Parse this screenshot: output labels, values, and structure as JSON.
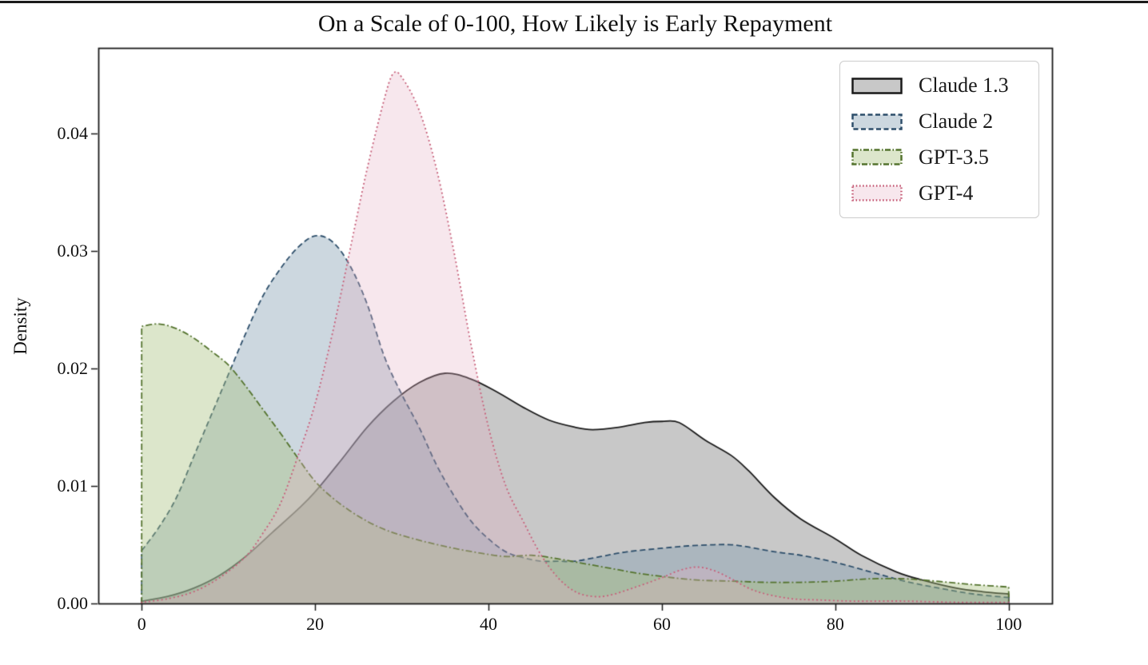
{
  "page": {
    "title": "On a Scale of 0-100, How Likely is Early Repayment"
  },
  "chart_data": {
    "type": "area",
    "subtype": "kde-density",
    "title": "On a Scale of 0-100, How Likely is Early Repayment",
    "xlabel": "",
    "ylabel": "Density",
    "xlim": [
      -5,
      105
    ],
    "ylim": [
      0,
      0.0473
    ],
    "grid": false,
    "legend_position": "upper right",
    "x_ticks": [
      0,
      20,
      40,
      60,
      80,
      100
    ],
    "x_tick_labels": [
      "0",
      "20",
      "40",
      "60",
      "80",
      "100"
    ],
    "y_ticks": [
      0,
      0.01,
      0.02,
      0.03,
      0.04
    ],
    "y_tick_labels": [
      "0.00",
      "0.01",
      "0.02",
      "0.03",
      "0.04"
    ],
    "frame_color": "#1a1a1a",
    "series": [
      {
        "name": "Claude 1.3",
        "line_style": "solid",
        "line_color": "#1a1a1a",
        "fill_color": "#767676",
        "fill_alpha": 0.4,
        "points": [
          [
            0,
            0.0002
          ],
          [
            3,
            0.0006
          ],
          [
            6,
            0.0013
          ],
          [
            9,
            0.0024
          ],
          [
            12,
            0.004
          ],
          [
            15,
            0.006
          ],
          [
            18,
            0.008
          ],
          [
            20,
            0.0095
          ],
          [
            23,
            0.0122
          ],
          [
            26,
            0.015
          ],
          [
            29,
            0.0172
          ],
          [
            32,
            0.0188
          ],
          [
            35,
            0.0196
          ],
          [
            38,
            0.0191
          ],
          [
            41,
            0.018
          ],
          [
            44,
            0.0167
          ],
          [
            47,
            0.0156
          ],
          [
            50,
            0.015
          ],
          [
            52,
            0.0148
          ],
          [
            55,
            0.015
          ],
          [
            58,
            0.0154
          ],
          [
            60,
            0.0155
          ],
          [
            62,
            0.0154
          ],
          [
            65,
            0.0139
          ],
          [
            68,
            0.0126
          ],
          [
            70,
            0.0113
          ],
          [
            73,
            0.009
          ],
          [
            76,
            0.0072
          ],
          [
            80,
            0.0055
          ],
          [
            83,
            0.0041
          ],
          [
            87,
            0.0027
          ],
          [
            90,
            0.002
          ],
          [
            94,
            0.0013
          ],
          [
            97,
            0.001
          ],
          [
            100,
            0.0008
          ]
        ]
      },
      {
        "name": "Claude 2",
        "line_style": "dashed",
        "line_color": "#2e4f6b",
        "fill_color": "#809baf",
        "fill_alpha": 0.4,
        "points": [
          [
            0,
            0.0045
          ],
          [
            2,
            0.0065
          ],
          [
            4,
            0.009
          ],
          [
            6,
            0.0125
          ],
          [
            8,
            0.016
          ],
          [
            10,
            0.0195
          ],
          [
            12,
            0.023
          ],
          [
            14,
            0.0262
          ],
          [
            16,
            0.0285
          ],
          [
            18,
            0.0303
          ],
          [
            20,
            0.0313
          ],
          [
            22,
            0.0308
          ],
          [
            24,
            0.0288
          ],
          [
            26,
            0.0255
          ],
          [
            28,
            0.021
          ],
          [
            30,
            0.0178
          ],
          [
            32,
            0.015
          ],
          [
            34,
            0.0118
          ],
          [
            36,
            0.0092
          ],
          [
            38,
            0.007
          ],
          [
            40,
            0.0055
          ],
          [
            42,
            0.0044
          ],
          [
            44,
            0.0039
          ],
          [
            46,
            0.0036
          ],
          [
            48,
            0.0036
          ],
          [
            50,
            0.0036
          ],
          [
            53,
            0.004
          ],
          [
            56,
            0.0044
          ],
          [
            60,
            0.0047
          ],
          [
            63,
            0.0049
          ],
          [
            66,
            0.005
          ],
          [
            68,
            0.005
          ],
          [
            70,
            0.0048
          ],
          [
            73,
            0.0044
          ],
          [
            76,
            0.0041
          ],
          [
            80,
            0.0035
          ],
          [
            84,
            0.0027
          ],
          [
            88,
            0.0019
          ],
          [
            92,
            0.0013
          ],
          [
            96,
            0.0008
          ],
          [
            100,
            0.0005
          ]
        ]
      },
      {
        "name": "GPT-3.5",
        "line_style": "dashdot",
        "line_color": "#55742f",
        "fill_color": "#a8c17d",
        "fill_alpha": 0.4,
        "points": [
          [
            0,
            0.0236
          ],
          [
            2,
            0.0238
          ],
          [
            4,
            0.0234
          ],
          [
            6,
            0.0226
          ],
          [
            8,
            0.0215
          ],
          [
            10,
            0.0203
          ],
          [
            12,
            0.0185
          ],
          [
            14,
            0.0165
          ],
          [
            16,
            0.0145
          ],
          [
            18,
            0.0124
          ],
          [
            20,
            0.0104
          ],
          [
            22,
            0.009
          ],
          [
            24,
            0.0079
          ],
          [
            26,
            0.007
          ],
          [
            28,
            0.0063
          ],
          [
            30,
            0.0058
          ],
          [
            33,
            0.0052
          ],
          [
            36,
            0.0047
          ],
          [
            39,
            0.0043
          ],
          [
            42,
            0.004
          ],
          [
            45,
            0.0041
          ],
          [
            48,
            0.0038
          ],
          [
            51,
            0.0034
          ],
          [
            54,
            0.003
          ],
          [
            57,
            0.0026
          ],
          [
            60,
            0.0023
          ],
          [
            64,
            0.002
          ],
          [
            68,
            0.0019
          ],
          [
            72,
            0.0018
          ],
          [
            76,
            0.0018
          ],
          [
            80,
            0.0019
          ],
          [
            84,
            0.0021
          ],
          [
            88,
            0.0021
          ],
          [
            90,
            0.002
          ],
          [
            93,
            0.0018
          ],
          [
            96,
            0.0016
          ],
          [
            100,
            0.0014
          ]
        ]
      },
      {
        "name": "GPT-4",
        "line_style": "dotted",
        "line_color": "#c7607a",
        "fill_color": "#e4afc3",
        "fill_alpha": 0.3,
        "points": [
          [
            0,
            0.0001
          ],
          [
            3,
            0.0004
          ],
          [
            6,
            0.001
          ],
          [
            9,
            0.0022
          ],
          [
            12,
            0.004
          ],
          [
            14,
            0.006
          ],
          [
            16,
            0.0085
          ],
          [
            18,
            0.0125
          ],
          [
            20,
            0.017
          ],
          [
            22,
            0.023
          ],
          [
            24,
            0.03
          ],
          [
            26,
            0.037
          ],
          [
            28,
            0.043
          ],
          [
            29,
            0.0451
          ],
          [
            30,
            0.0448
          ],
          [
            32,
            0.042
          ],
          [
            34,
            0.037
          ],
          [
            36,
            0.03
          ],
          [
            38,
            0.022
          ],
          [
            40,
            0.015
          ],
          [
            42,
            0.01
          ],
          [
            44,
            0.007
          ],
          [
            46,
            0.0042
          ],
          [
            48,
            0.0022
          ],
          [
            50,
            0.001
          ],
          [
            52,
            0.0006
          ],
          [
            54,
            0.0007
          ],
          [
            57,
            0.0014
          ],
          [
            60,
            0.0022
          ],
          [
            62,
            0.0028
          ],
          [
            64,
            0.0031
          ],
          [
            66,
            0.0028
          ],
          [
            68,
            0.0021
          ],
          [
            70,
            0.0013
          ],
          [
            72,
            0.0008
          ],
          [
            75,
            0.0004
          ],
          [
            78,
            0.0003
          ],
          [
            82,
            0.0002
          ],
          [
            88,
            0.0002
          ],
          [
            94,
            0.0001
          ],
          [
            100,
            0.0001
          ]
        ]
      }
    ]
  }
}
